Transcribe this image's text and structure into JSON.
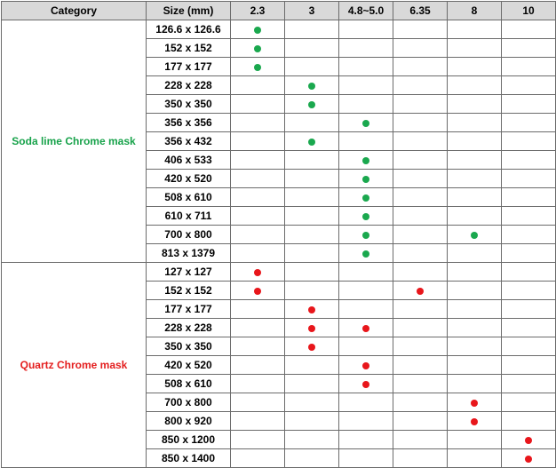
{
  "header": {
    "category": "Category",
    "size": "Size (mm)",
    "thicknesses": [
      "2.3",
      "3",
      "4.8~5.0",
      "6.35",
      "8",
      "10"
    ]
  },
  "colors": {
    "soda": "#1aa84e",
    "quartz": "#e8161b"
  },
  "groups": [
    {
      "name": "Soda lime Chrome mask",
      "color": "green",
      "rows": [
        {
          "size": "126.6 x 126.6",
          "marks": [
            "2.3"
          ]
        },
        {
          "size": "152 x 152",
          "marks": [
            "2.3"
          ]
        },
        {
          "size": "177 x 177",
          "marks": [
            "2.3"
          ]
        },
        {
          "size": "228 x 228",
          "marks": [
            "3"
          ]
        },
        {
          "size": "350 x 350",
          "marks": [
            "3"
          ]
        },
        {
          "size": "356 x 356",
          "marks": [
            "4.8~5.0"
          ]
        },
        {
          "size": "356 x 432",
          "marks": [
            "3"
          ]
        },
        {
          "size": "406 x 533",
          "marks": [
            "4.8~5.0"
          ]
        },
        {
          "size": "420 x 520",
          "marks": [
            "4.8~5.0"
          ]
        },
        {
          "size": "508 x 610",
          "marks": [
            "4.8~5.0"
          ]
        },
        {
          "size": "610 x 711",
          "marks": [
            "4.8~5.0"
          ]
        },
        {
          "size": "700 x 800",
          "marks": [
            "4.8~5.0",
            "8"
          ]
        },
        {
          "size": "813 x 1379",
          "marks": [
            "4.8~5.0"
          ]
        }
      ]
    },
    {
      "name": "Quartz Chrome mask",
      "color": "red",
      "rows": [
        {
          "size": "127 x 127",
          "marks": [
            "2.3"
          ]
        },
        {
          "size": "152 x 152",
          "marks": [
            "2.3",
            "6.35"
          ]
        },
        {
          "size": "177 x 177",
          "marks": [
            "3"
          ]
        },
        {
          "size": "228 x 228",
          "marks": [
            "3",
            "4.8~5.0"
          ]
        },
        {
          "size": "350 x 350",
          "marks": [
            "3"
          ]
        },
        {
          "size": "420 x 520",
          "marks": [
            "4.8~5.0"
          ]
        },
        {
          "size": "508 x 610",
          "marks": [
            "4.8~5.0"
          ]
        },
        {
          "size": "700 x 800",
          "marks": [
            "8"
          ]
        },
        {
          "size": "800 x 920",
          "marks": [
            "8"
          ]
        },
        {
          "size": "850 x 1200",
          "marks": [
            "10"
          ]
        },
        {
          "size": "850 x 1400",
          "marks": [
            "10"
          ]
        }
      ]
    }
  ]
}
